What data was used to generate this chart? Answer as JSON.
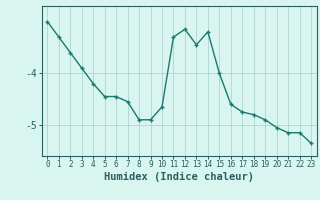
{
  "xlabel": "Humidex (Indice chaleur)",
  "ylabel": "",
  "x_values": [
    0,
    1,
    2,
    3,
    4,
    5,
    6,
    7,
    8,
    9,
    10,
    11,
    12,
    13,
    14,
    15,
    16,
    17,
    18,
    19,
    20,
    21,
    22,
    23
  ],
  "y_values": [
    -3.0,
    -3.3,
    -3.6,
    -3.9,
    -4.2,
    -4.45,
    -4.45,
    -4.55,
    -4.9,
    -4.9,
    -4.65,
    -3.3,
    -3.15,
    -3.45,
    -3.2,
    -4.0,
    -4.6,
    -4.75,
    -4.8,
    -4.9,
    -5.05,
    -5.15,
    -5.15,
    -5.35
  ],
  "line_color": "#1a7a6e",
  "marker": "+",
  "marker_size": 3,
  "marker_linewidth": 1.0,
  "line_width": 1.0,
  "bg_color": "#d8f5f0",
  "grid_color": "#b0d5ce",
  "axis_color": "#2a6060",
  "yticks": [
    -5,
    -4
  ],
  "ylim": [
    -5.6,
    -2.7
  ],
  "xlim": [
    -0.5,
    23.5
  ],
  "y_tick_fontsize": 7,
  "x_tick_fontsize": 5.5,
  "xlabel_fontsize": 7.5
}
